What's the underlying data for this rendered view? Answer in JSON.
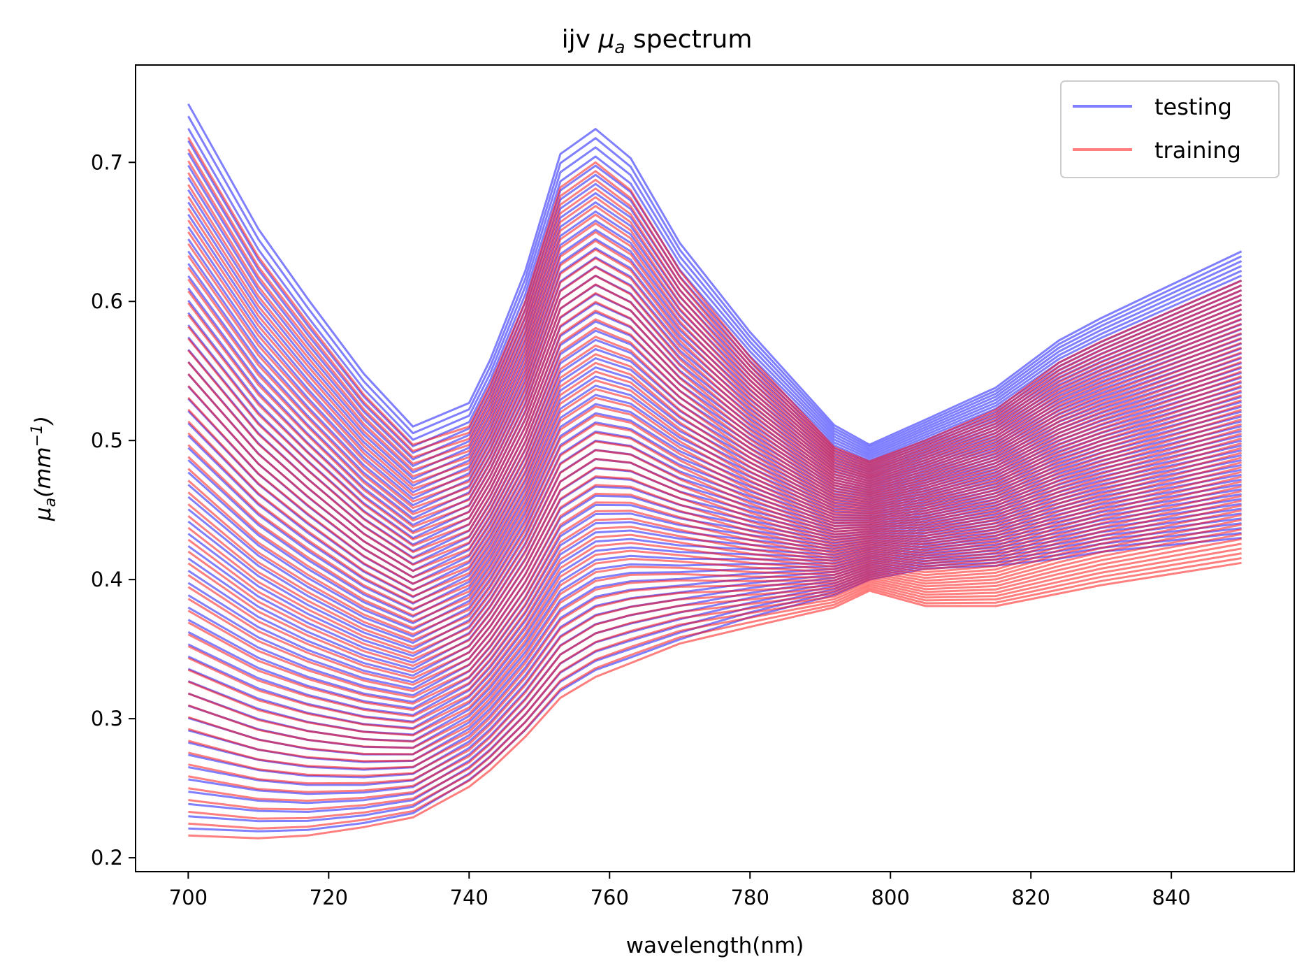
{
  "chart_data": {
    "type": "line",
    "title": "ijv μa spectrum",
    "title_parts": {
      "prefix": "ijv ",
      "symbol": "μ",
      "subscript": "a",
      "suffix": " spectrum"
    },
    "xlabel": "wavelength(nm)",
    "ylabel": "μa(mm−1)",
    "ylabel_parts": {
      "symbol": "μ",
      "subscript": "a",
      "open": "(mm",
      "superscript": "−1",
      "close": ")"
    },
    "xlim": [
      692.5,
      857.5
    ],
    "ylim": [
      0.19,
      0.77
    ],
    "x_ticks": [
      700,
      720,
      740,
      760,
      780,
      800,
      820,
      840
    ],
    "y_ticks": [
      0.2,
      0.3,
      0.4,
      0.5,
      0.6,
      0.7
    ],
    "y_tick_labels": [
      "0.2",
      "0.3",
      "0.4",
      "0.5",
      "0.6",
      "0.7"
    ],
    "x": [
      700,
      710,
      717,
      725,
      732,
      740,
      743,
      748,
      753,
      758,
      763,
      770,
      780,
      792,
      797,
      805,
      815,
      824,
      830,
      850
    ],
    "legend": {
      "position": "top-right",
      "entries": [
        "testing",
        "training"
      ]
    },
    "series": [
      {
        "name": "testing",
        "color": "#0000ff",
        "alpha": 0.5,
        "count": 60,
        "upper_envelope": [
          0.742,
          0.652,
          0.602,
          0.548,
          0.51,
          0.527,
          0.558,
          0.622,
          0.706,
          0.724,
          0.703,
          0.642,
          0.578,
          0.511,
          0.497,
          0.515,
          0.538,
          0.572,
          0.588,
          0.636
        ],
        "lower_envelope": [
          0.221,
          0.219,
          0.22,
          0.225,
          0.232,
          0.256,
          0.268,
          0.292,
          0.32,
          0.335,
          0.344,
          0.357,
          0.373,
          0.389,
          0.4,
          0.408,
          0.41,
          0.415,
          0.42,
          0.43
        ]
      },
      {
        "name": "training",
        "color": "#ff0000",
        "alpha": 0.5,
        "count": 60,
        "upper_envelope": [
          0.718,
          0.632,
          0.585,
          0.533,
          0.497,
          0.51,
          0.54,
          0.6,
          0.682,
          0.7,
          0.68,
          0.622,
          0.56,
          0.495,
          0.485,
          0.5,
          0.522,
          0.556,
          0.571,
          0.615
        ],
        "lower_envelope": [
          0.216,
          0.214,
          0.216,
          0.222,
          0.229,
          0.251,
          0.263,
          0.287,
          0.315,
          0.33,
          0.34,
          0.354,
          0.366,
          0.38,
          0.392,
          0.381,
          0.381,
          0.39,
          0.396,
          0.412
        ]
      }
    ]
  }
}
